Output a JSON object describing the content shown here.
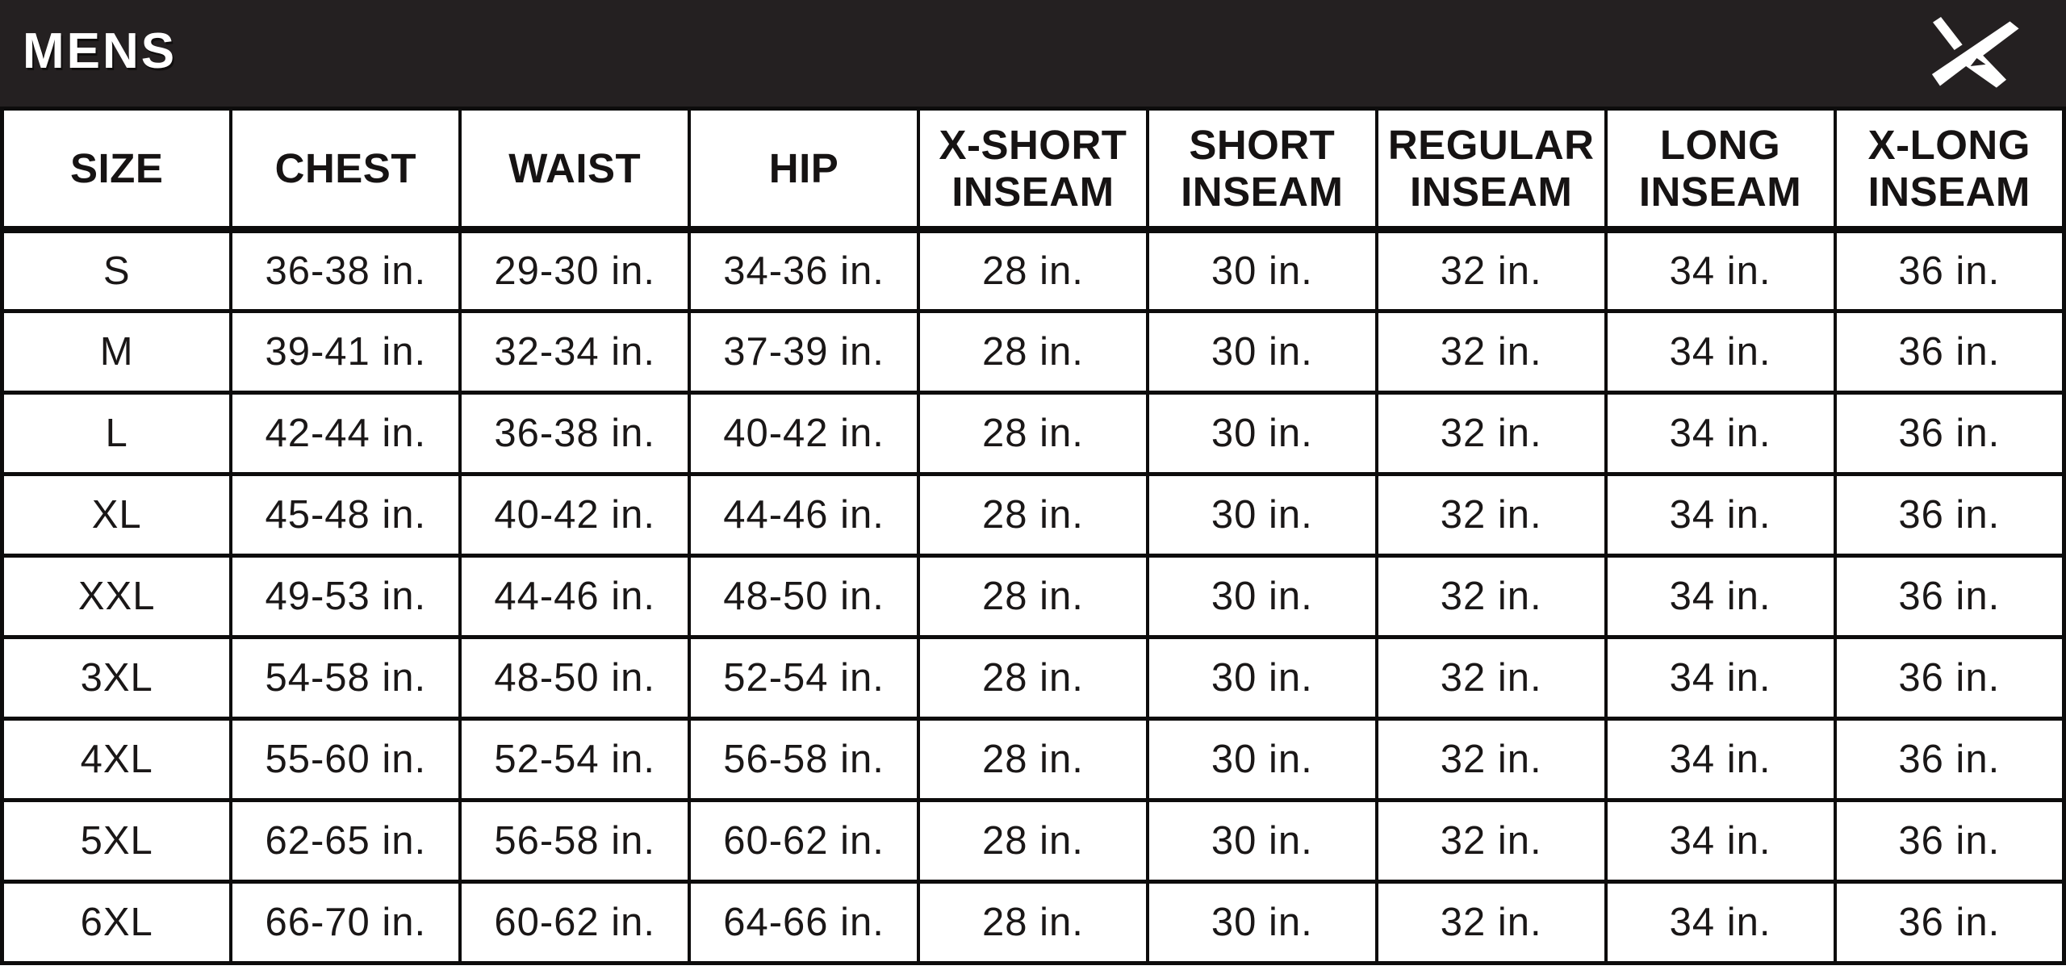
{
  "banner": {
    "title": "MENS",
    "background_color": "#242021",
    "text_color": "#ffffff",
    "logo_icon": "brand-angled-a-logo-icon",
    "logo_color": "#ffffff"
  },
  "chart_data": {
    "type": "table",
    "title": "MENS",
    "units": "inches",
    "grid": true,
    "columns": [
      [
        "SIZE"
      ],
      [
        "CHEST"
      ],
      [
        "WAIST"
      ],
      [
        "HIP"
      ],
      [
        "X-SHORT",
        "INSEAM"
      ],
      [
        "SHORT",
        "INSEAM"
      ],
      [
        "REGULAR",
        "INSEAM"
      ],
      [
        "LONG",
        "INSEAM"
      ],
      [
        "X-LONG",
        "INSEAM"
      ]
    ],
    "rows": [
      [
        "S",
        "36-38 in.",
        "29-30 in.",
        "34-36 in.",
        "28 in.",
        "30 in.",
        "32 in.",
        "34 in.",
        "36 in."
      ],
      [
        "M",
        "39-41 in.",
        "32-34 in.",
        "37-39 in.",
        "28 in.",
        "30 in.",
        "32 in.",
        "34 in.",
        "36 in."
      ],
      [
        "L",
        "42-44 in.",
        "36-38 in.",
        "40-42 in.",
        "28 in.",
        "30 in.",
        "32 in.",
        "34 in.",
        "36 in."
      ],
      [
        "XL",
        "45-48 in.",
        "40-42 in.",
        "44-46 in.",
        "28 in.",
        "30 in.",
        "32 in.",
        "34 in.",
        "36 in."
      ],
      [
        "XXL",
        "49-53 in.",
        "44-46 in.",
        "48-50 in.",
        "28 in.",
        "30 in.",
        "32 in.",
        "34 in.",
        "36 in."
      ],
      [
        "3XL",
        "54-58 in.",
        "48-50 in.",
        "52-54 in.",
        "28 in.",
        "30 in.",
        "32 in.",
        "34 in.",
        "36 in."
      ],
      [
        "4XL",
        "55-60 in.",
        "52-54 in.",
        "56-58 in.",
        "28 in.",
        "30 in.",
        "32 in.",
        "34 in.",
        "36 in."
      ],
      [
        "5XL",
        "62-65 in.",
        "56-58 in.",
        "60-62 in.",
        "28 in.",
        "30 in.",
        "32 in.",
        "34 in.",
        "36 in."
      ],
      [
        "6XL",
        "66-70 in.",
        "60-62 in.",
        "64-66 in.",
        "28 in.",
        "30 in.",
        "32 in.",
        "34 in.",
        "36 in."
      ]
    ]
  },
  "colors": {
    "table_border": "#0d0c0c",
    "cell_text": "#1a1717",
    "cell_background": "#ffffff"
  }
}
